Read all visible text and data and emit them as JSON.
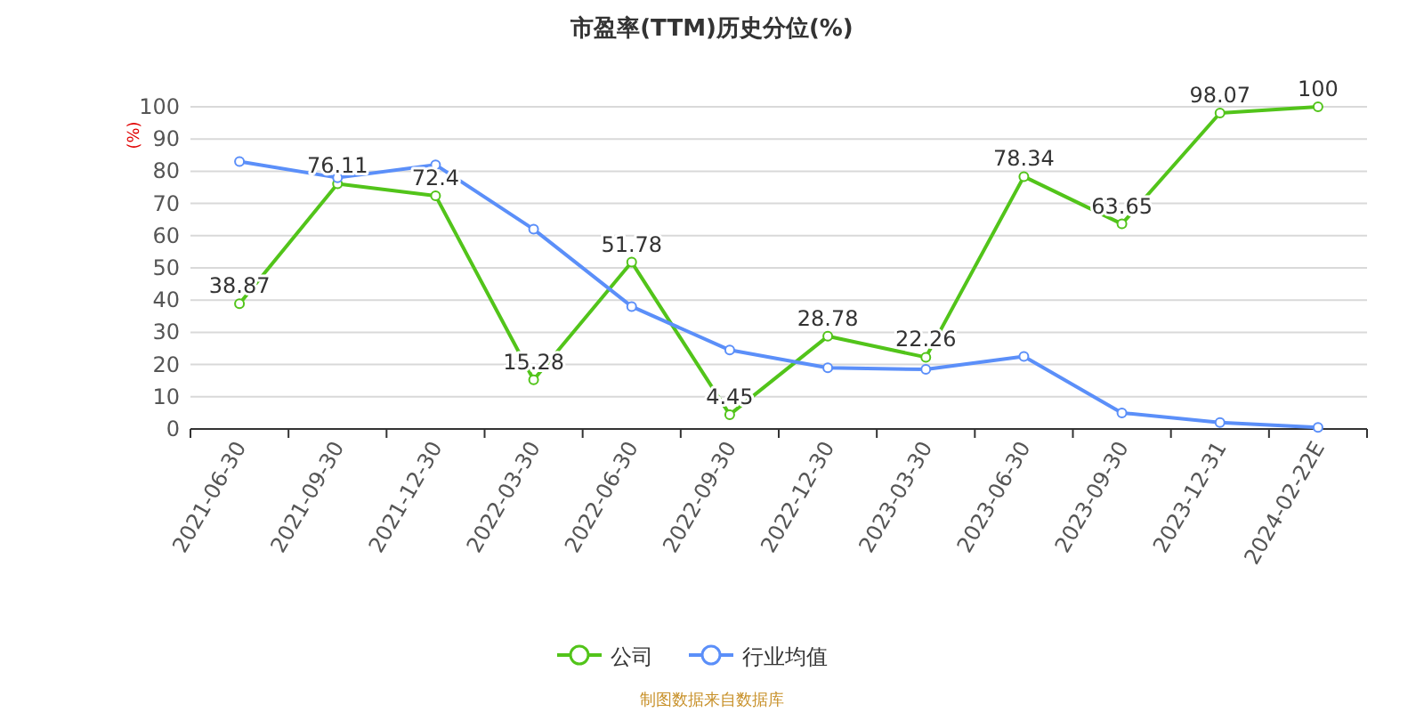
{
  "chart_data": {
    "type": "line",
    "title": "市盈率(TTM)历史分位(%)",
    "ylabel": "(%)",
    "categories": [
      "2021-06-30",
      "2021-09-30",
      "2021-12-30",
      "2022-03-30",
      "2022-06-30",
      "2022-09-30",
      "2022-12-30",
      "2023-03-30",
      "2023-06-30",
      "2023-09-30",
      "2023-12-31",
      "2024-02-22E"
    ],
    "series": [
      {
        "name": "公司",
        "color": "#52c41a",
        "values": [
          38.87,
          76.11,
          72.4,
          15.28,
          51.78,
          4.45,
          28.78,
          22.26,
          78.34,
          63.65,
          98.07,
          100
        ],
        "data_labels": true
      },
      {
        "name": "行业均值",
        "color": "#5b8ff9",
        "values": [
          83,
          78,
          82,
          62,
          38,
          24.5,
          19,
          18.5,
          22.5,
          5,
          2,
          0.5
        ]
      }
    ],
    "ylim": [
      0,
      100
    ],
    "yticks": [
      0,
      10,
      20,
      30,
      40,
      50,
      60,
      70,
      80,
      90,
      100
    ],
    "grid": "y",
    "legend": "bottom",
    "marker": "circle",
    "annotations": [
      "制图数据来自数据库"
    ]
  }
}
